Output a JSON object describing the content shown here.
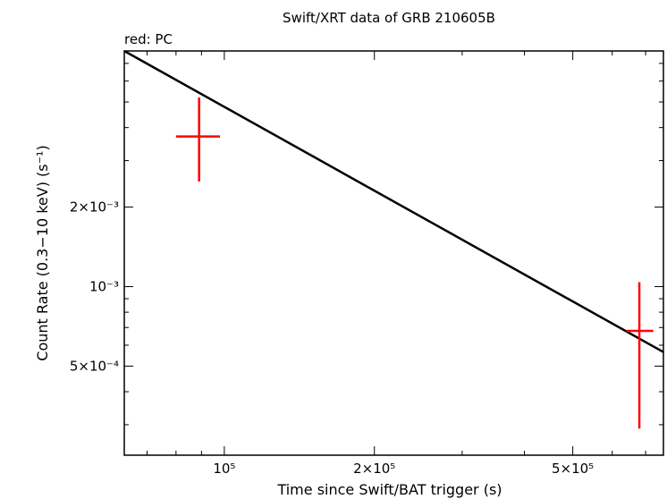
{
  "chart_data": {
    "type": "scatter",
    "title": "Swift/XRT data of GRB 210605B",
    "subtitle": "red: PC",
    "xlabel": "Time since Swift/BAT trigger (s)",
    "ylabel": "Count Rate (0.3−10 keV) (s⁻¹)",
    "xscale": "log",
    "yscale": "log",
    "xlim": [
      63000,
      760000
    ],
    "ylim": [
      0.00023,
      0.0078
    ],
    "x_ticks": [
      {
        "value": 100000,
        "label": "10⁵"
      },
      {
        "value": 200000,
        "label": "2×10⁵"
      },
      {
        "value": 500000,
        "label": "5×10⁵"
      }
    ],
    "y_ticks": [
      {
        "value": 0.0005,
        "label": "5×10⁻⁴"
      },
      {
        "value": 0.001,
        "label": "10⁻³"
      },
      {
        "value": 0.002,
        "label": "2×10⁻³"
      }
    ],
    "series": [
      {
        "name": "PC",
        "color": "#ff0000",
        "points": [
          {
            "x": 89000,
            "y": 0.0037,
            "xerr": [
              80000,
              98000
            ],
            "yerr": [
              0.0025,
              0.0052
            ]
          },
          {
            "x": 680000,
            "y": 0.00068,
            "xerr": [
              640000,
              725000
            ],
            "yerr": [
              0.00029,
              0.00104
            ]
          }
        ]
      }
    ],
    "model_line": {
      "color": "#000000",
      "points": [
        {
          "x": 63000,
          "y": 0.0078
        },
        {
          "x": 760000,
          "y": 0.000565
        }
      ]
    },
    "grid": false,
    "legend": "none"
  }
}
